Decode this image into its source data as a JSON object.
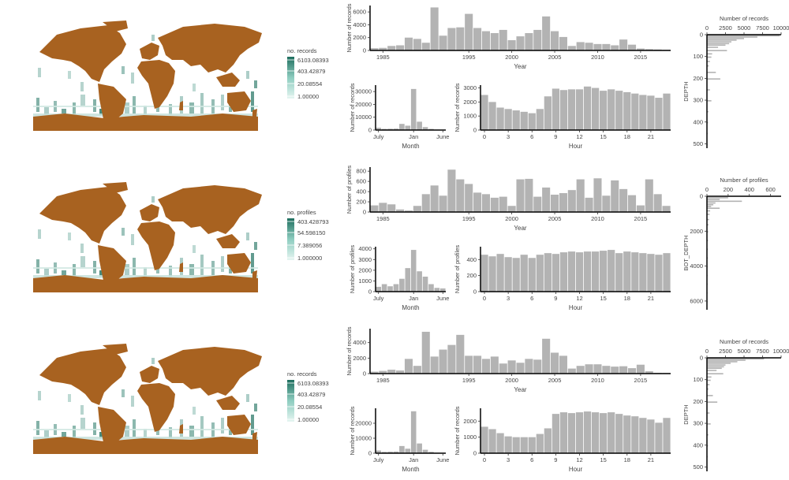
{
  "colors": {
    "land": "#a86220",
    "bar": "#b3b3b3",
    "axis": "#000000",
    "ramp_low": "#e5f5f1",
    "ramp_mid": "#8ecdc0",
    "ramp_high": "#1e6e5e"
  },
  "chart_data": [
    {
      "type": "heatmap",
      "panel": "row1-map",
      "legend_title": "no. records",
      "legend_labels": [
        "6103.08393",
        "403.42879",
        "20.08554",
        "1.00000"
      ]
    },
    {
      "type": "bar",
      "panel": "row1-year",
      "xlabel": "Year",
      "ylabel": "Number of records",
      "x": [
        1984,
        1985,
        1986,
        1987,
        1988,
        1989,
        1990,
        1991,
        1992,
        1993,
        1994,
        1995,
        1996,
        1997,
        1998,
        1999,
        2000,
        2001,
        2002,
        2003,
        2004,
        2005,
        2006,
        2007,
        2008,
        2009,
        2010,
        2011,
        2012,
        2013,
        2014,
        2015,
        2016,
        2017,
        2018
      ],
      "values": [
        350,
        400,
        700,
        800,
        2000,
        1800,
        1200,
        6700,
        2300,
        3500,
        3600,
        5700,
        3500,
        3000,
        2700,
        3200,
        1600,
        2200,
        2700,
        3200,
        5300,
        3000,
        2100,
        700,
        1300,
        1200,
        1000,
        1000,
        800,
        1700,
        900,
        300,
        200,
        150,
        100
      ],
      "xticks": [
        "1985",
        "1995",
        "2000",
        "2005",
        "2010",
        "2015"
      ],
      "yticks": [
        "0",
        "2000",
        "4000",
        "6000"
      ],
      "ylim": [
        0,
        7000
      ]
    },
    {
      "type": "bar",
      "panel": "row1-month",
      "xlabel": "Month",
      "ylabel": "Number of records",
      "x": [
        "Jul",
        "Aug",
        "Sep",
        "Oct",
        "Nov",
        "Dec",
        "Jan",
        "Feb",
        "Mar",
        "Apr",
        "May",
        "Jun"
      ],
      "values": [
        1800,
        900,
        1000,
        1100,
        4800,
        3400,
        32000,
        6500,
        2300,
        900,
        350,
        200
      ],
      "xticks": [
        "July",
        "Jan",
        "June"
      ],
      "yticks": [
        "0",
        "10000",
        "20000",
        "30000"
      ],
      "ylim": [
        0,
        35000
      ]
    },
    {
      "type": "bar",
      "panel": "row1-hour",
      "xlabel": "Hour",
      "ylabel": "Number of records",
      "x": [
        0,
        1,
        2,
        3,
        4,
        5,
        6,
        7,
        8,
        9,
        10,
        11,
        12,
        13,
        14,
        15,
        16,
        17,
        18,
        19,
        20,
        21,
        22,
        23
      ],
      "values": [
        2500,
        2000,
        1600,
        1500,
        1400,
        1300,
        1200,
        1500,
        2400,
        2950,
        2850,
        2900,
        2900,
        3100,
        3000,
        2800,
        2900,
        2800,
        2700,
        2600,
        2500,
        2450,
        2300,
        2600
      ],
      "xticks": [
        "0",
        "3",
        "6",
        "9",
        "12",
        "15",
        "18",
        "21"
      ],
      "yticks": [
        "0",
        "1000",
        "2000",
        "3000"
      ],
      "ylim": [
        0,
        3200
      ]
    },
    {
      "type": "bar",
      "panel": "row1-depth",
      "orientation": "horizontal",
      "xlabel": "Number of records",
      "ylabel": "DEPTH",
      "x": [
        2,
        8,
        15,
        22,
        30,
        38,
        45,
        55,
        70,
        85,
        100,
        120,
        140,
        170,
        200,
        250,
        300,
        350,
        400,
        450,
        500
      ],
      "values": [
        9800,
        6800,
        5000,
        4000,
        3300,
        3000,
        2500,
        1500,
        2700,
        700,
        600,
        400,
        250,
        1200,
        1800,
        400,
        600,
        200,
        150,
        100,
        50
      ],
      "xticks": [
        "0",
        "2500",
        "5000",
        "7500",
        "10000"
      ],
      "yticks": [
        "0",
        "100",
        "200",
        "300",
        "400",
        "500"
      ],
      "xlim": [
        0,
        10000
      ],
      "ylim": [
        0,
        520
      ]
    },
    {
      "type": "heatmap",
      "panel": "row2-map",
      "legend_title": "no. profiles",
      "legend_labels": [
        "403.428793",
        "54.598150",
        "7.389056",
        "1.000000"
      ]
    },
    {
      "type": "bar",
      "panel": "row2-year",
      "xlabel": "Year",
      "ylabel": "Number of profiles",
      "x": [
        1984,
        1985,
        1986,
        1987,
        1988,
        1989,
        1990,
        1991,
        1992,
        1993,
        1994,
        1995,
        1996,
        1997,
        1998,
        1999,
        2000,
        2001,
        2002,
        2003,
        2004,
        2005,
        2006,
        2007,
        2008,
        2009,
        2010,
        2011,
        2012,
        2013,
        2014,
        2015,
        2016,
        2017,
        2018
      ],
      "values": [
        130,
        180,
        150,
        50,
        30,
        120,
        350,
        520,
        320,
        830,
        640,
        550,
        380,
        350,
        280,
        300,
        120,
        640,
        650,
        300,
        480,
        340,
        370,
        430,
        640,
        280,
        660,
        320,
        620,
        450,
        330,
        130,
        640,
        350,
        120
      ],
      "xticks": [
        "1985",
        "1995",
        "2000",
        "2005",
        "2010",
        "2015"
      ],
      "yticks": [
        "0",
        "200",
        "400",
        "600",
        "800"
      ],
      "ylim": [
        0,
        880
      ]
    },
    {
      "type": "bar",
      "panel": "row2-month",
      "xlabel": "Month",
      "ylabel": "Number of profiles",
      "x": [
        "Jul",
        "Aug",
        "Sep",
        "Oct",
        "Nov",
        "Dec",
        "Jan",
        "Feb",
        "Mar",
        "Apr",
        "May",
        "Jun"
      ],
      "values": [
        450,
        700,
        500,
        700,
        1200,
        2200,
        3900,
        1900,
        1400,
        700,
        350,
        300
      ],
      "xticks": [
        "July",
        "Jan",
        "June"
      ],
      "yticks": [
        "0",
        "1000",
        "2000",
        "3000",
        "4000"
      ],
      "ylim": [
        0,
        4200
      ]
    },
    {
      "type": "bar",
      "panel": "row2-hour",
      "xlabel": "Hour",
      "ylabel": "Number of profiles",
      "x": [
        0,
        1,
        2,
        3,
        4,
        5,
        6,
        7,
        8,
        9,
        10,
        11,
        12,
        13,
        14,
        15,
        16,
        17,
        18,
        19,
        20,
        21,
        22,
        23
      ],
      "values": [
        460,
        440,
        470,
        430,
        420,
        460,
        420,
        460,
        480,
        470,
        490,
        500,
        490,
        500,
        500,
        510,
        520,
        480,
        500,
        490,
        480,
        470,
        460,
        480
      ],
      "xticks": [
        "0",
        "3",
        "6",
        "9",
        "12",
        "15",
        "18",
        "21"
      ],
      "yticks": [
        "0",
        "200",
        "400"
      ],
      "ylim": [
        0,
        560
      ]
    },
    {
      "type": "bar",
      "panel": "row2-depth",
      "orientation": "horizontal",
      "xlabel": "Number of profiles",
      "ylabel": "BOT_DEPTH",
      "x": [
        50,
        150,
        250,
        350,
        450,
        550,
        650,
        800,
        1000,
        1300,
        1600,
        2000,
        2500,
        3000,
        3500,
        4000,
        4500,
        5000,
        5500,
        6000
      ],
      "values": [
        200,
        120,
        330,
        80,
        60,
        40,
        120,
        30,
        25,
        20,
        15,
        12,
        10,
        8,
        8,
        6,
        5,
        4,
        4,
        3
      ],
      "xticks": [
        "0",
        "200",
        "400",
        "600"
      ],
      "yticks": [
        "0",
        "2000",
        "4000",
        "6000"
      ],
      "xlim": [
        0,
        700
      ],
      "ylim": [
        0,
        6500
      ]
    },
    {
      "type": "heatmap",
      "panel": "row3-map",
      "legend_title": "no. records",
      "legend_labels": [
        "6103.08393",
        "403.42879",
        "20.08554",
        "1.00000"
      ]
    },
    {
      "type": "bar",
      "panel": "row3-year",
      "xlabel": "Year",
      "ylabel": "Number of records",
      "x": [
        1984,
        1985,
        1986,
        1987,
        1988,
        1989,
        1990,
        1991,
        1992,
        1993,
        1994,
        1995,
        1996,
        1997,
        1998,
        1999,
        2000,
        2001,
        2002,
        2003,
        2004,
        2005,
        2006,
        2007,
        2008,
        2009,
        2010,
        2011,
        2012,
        2013,
        2014,
        2015,
        2016,
        2017,
        2018
      ],
      "values": [
        250,
        350,
        500,
        400,
        1900,
        1000,
        5400,
        2200,
        3100,
        3700,
        5000,
        2300,
        2300,
        1900,
        2200,
        1300,
        1700,
        1400,
        1900,
        1800,
        4500,
        2700,
        2300,
        650,
        1000,
        1200,
        1200,
        1000,
        900,
        950,
        700,
        1150,
        300,
        100,
        80
      ],
      "xticks": [
        "1985",
        "1995",
        "2000",
        "2005",
        "2010",
        "2015"
      ],
      "yticks": [
        "0",
        "2000",
        "4000"
      ],
      "ylim": [
        0,
        5800
      ]
    },
    {
      "type": "bar",
      "panel": "row3-month",
      "xlabel": "Month",
      "ylabel": "Number of records",
      "x": [
        "Jul",
        "Aug",
        "Sep",
        "Oct",
        "Nov",
        "Dec",
        "Jan",
        "Feb",
        "Mar",
        "Apr",
        "May",
        "Jun"
      ],
      "values": [
        1800,
        900,
        1000,
        1100,
        4800,
        3000,
        28000,
        6500,
        2300,
        900,
        350,
        200
      ],
      "xticks": [
        "July",
        "Jan",
        "June"
      ],
      "yticks": [
        "0",
        "10000",
        "20000"
      ],
      "ylim": [
        0,
        30000
      ]
    },
    {
      "type": "bar",
      "panel": "row3-hour",
      "xlabel": "Hour",
      "ylabel": "Number of records",
      "x": [
        0,
        1,
        2,
        3,
        4,
        5,
        6,
        7,
        8,
        9,
        10,
        11,
        12,
        13,
        14,
        15,
        16,
        17,
        18,
        19,
        20,
        21,
        22,
        23
      ],
      "values": [
        1650,
        1500,
        1250,
        1050,
        1000,
        1000,
        1000,
        1200,
        1550,
        2450,
        2550,
        2500,
        2550,
        2600,
        2550,
        2500,
        2550,
        2450,
        2350,
        2300,
        2200,
        2100,
        1900,
        2200
      ],
      "xticks": [
        "0",
        "3",
        "6",
        "9",
        "12",
        "15",
        "18",
        "21"
      ],
      "yticks": [
        "0",
        "1000",
        "2000"
      ],
      "ylim": [
        0,
        2800
      ]
    },
    {
      "type": "bar",
      "panel": "row3-depth",
      "orientation": "horizontal",
      "xlabel": "Number of records",
      "ylabel": "DEPTH",
      "x": [
        2,
        8,
        15,
        22,
        30,
        38,
        45,
        55,
        70,
        85,
        100,
        120,
        140,
        170,
        200,
        250,
        300,
        350,
        400,
        450,
        500
      ],
      "values": [
        7700,
        5200,
        4100,
        3200,
        2500,
        2300,
        2000,
        1300,
        2200,
        600,
        500,
        350,
        200,
        800,
        1400,
        350,
        500,
        200,
        150,
        100,
        50
      ],
      "xticks": [
        "0",
        "2500",
        "5000",
        "7500",
        "10000"
      ],
      "yticks": [
        "0",
        "100",
        "200",
        "300",
        "400",
        "500"
      ],
      "xlim": [
        0,
        10000
      ],
      "ylim": [
        0,
        520
      ]
    }
  ]
}
